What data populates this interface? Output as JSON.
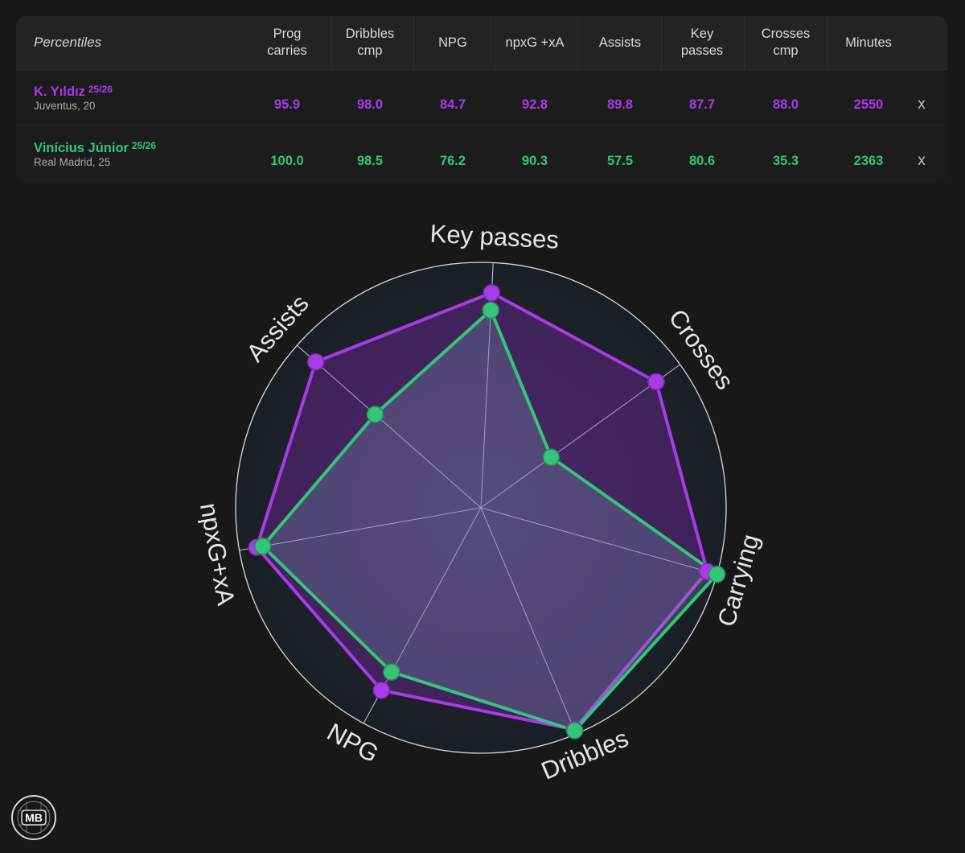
{
  "table": {
    "corner_label": "Percentiles",
    "columns": [
      {
        "label": "Prog\ncarries"
      },
      {
        "label": "Dribbles\ncmp"
      },
      {
        "label": "NPG"
      },
      {
        "label": "npxG +xA"
      },
      {
        "label": "Assists"
      },
      {
        "label": "Key\npasses"
      },
      {
        "label": "Crosses\ncmp"
      },
      {
        "label": "Minutes"
      }
    ],
    "players": [
      {
        "name": "K. Yıldız",
        "season": "25/26",
        "club_age": "Juventus, 20",
        "values": [
          "95.9",
          "98.0",
          "84.7",
          "92.8",
          "89.8",
          "87.7",
          "88.0",
          "2550"
        ],
        "remove_label": "x",
        "color": "#a83be8"
      },
      {
        "name": "Vinícius Júnior",
        "season": "25/26",
        "club_age": "Real Madrid, 25",
        "values": [
          "100.0",
          "98.5",
          "76.2",
          "90.3",
          "57.5",
          "80.6",
          "35.3",
          "2363"
        ],
        "remove_label": "x",
        "color": "#35c47a"
      }
    ]
  },
  "chart_data": {
    "type": "radar",
    "axes": [
      "Key passes",
      "Crosses",
      "Carrying",
      "Dribbles",
      "NPG",
      "npxG+xA",
      "Assists"
    ],
    "range": [
      0,
      100
    ],
    "series": [
      {
        "name": "K. Yıldız",
        "color": "#a83be8",
        "values": [
          87.7,
          88.0,
          95.9,
          98.0,
          84.7,
          92.8,
          89.8
        ]
      },
      {
        "name": "Vinícius Júnior",
        "color": "#35c47a",
        "values": [
          80.6,
          35.3,
          100.0,
          98.5,
          76.2,
          90.3,
          57.5
        ]
      }
    ]
  },
  "logo": {
    "text": "MB",
    "icon": "mb-badge-icon"
  }
}
